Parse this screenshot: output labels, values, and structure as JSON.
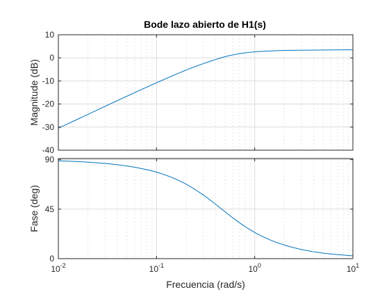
{
  "chart_data": {
    "type": "line",
    "title": "Bode lazo abierto de H1(s)",
    "xlabel": "Frecuencia  (rad/s)",
    "xscale": "log",
    "xlim": [
      0.01,
      10
    ],
    "x_ticks": [
      {
        "base": "10",
        "exp": "-2"
      },
      {
        "base": "10",
        "exp": "-1"
      },
      {
        "base": "10",
        "exp": "0"
      },
      {
        "base": "10",
        "exp": "1"
      }
    ],
    "grid": true,
    "color": "#0072bd",
    "panels": [
      {
        "name": "magnitude",
        "ylabel": "Magnitude (dB)",
        "ylim": [
          -40,
          10
        ],
        "yticks": [
          "10",
          "0",
          "-10",
          "-20",
          "-30",
          "-40"
        ],
        "x": [
          0.01,
          0.02,
          0.05,
          0.1,
          0.2,
          0.3,
          0.5,
          0.7,
          1,
          1.5,
          2,
          3,
          5,
          10
        ],
        "y": [
          -30.5,
          -24.5,
          -16.6,
          -10.8,
          -5.3,
          -2.5,
          0.5,
          1.8,
          2.6,
          3.0,
          3.2,
          3.3,
          3.4,
          3.5
        ]
      },
      {
        "name": "phase",
        "ylabel": "Fase (deg)",
        "ylim": [
          0,
          91
        ],
        "yticks": [
          "90",
          "45",
          "0"
        ],
        "x": [
          0.01,
          0.02,
          0.05,
          0.1,
          0.15,
          0.2,
          0.3,
          0.4,
          0.5,
          0.7,
          1,
          1.5,
          2,
          3,
          5,
          10
        ],
        "y": [
          88.9,
          87.7,
          84.2,
          78.6,
          73.0,
          67.7,
          57.8,
          49.4,
          42.5,
          32.6,
          23.8,
          16.3,
          12.4,
          8.3,
          5.0,
          2.5
        ]
      }
    ]
  }
}
